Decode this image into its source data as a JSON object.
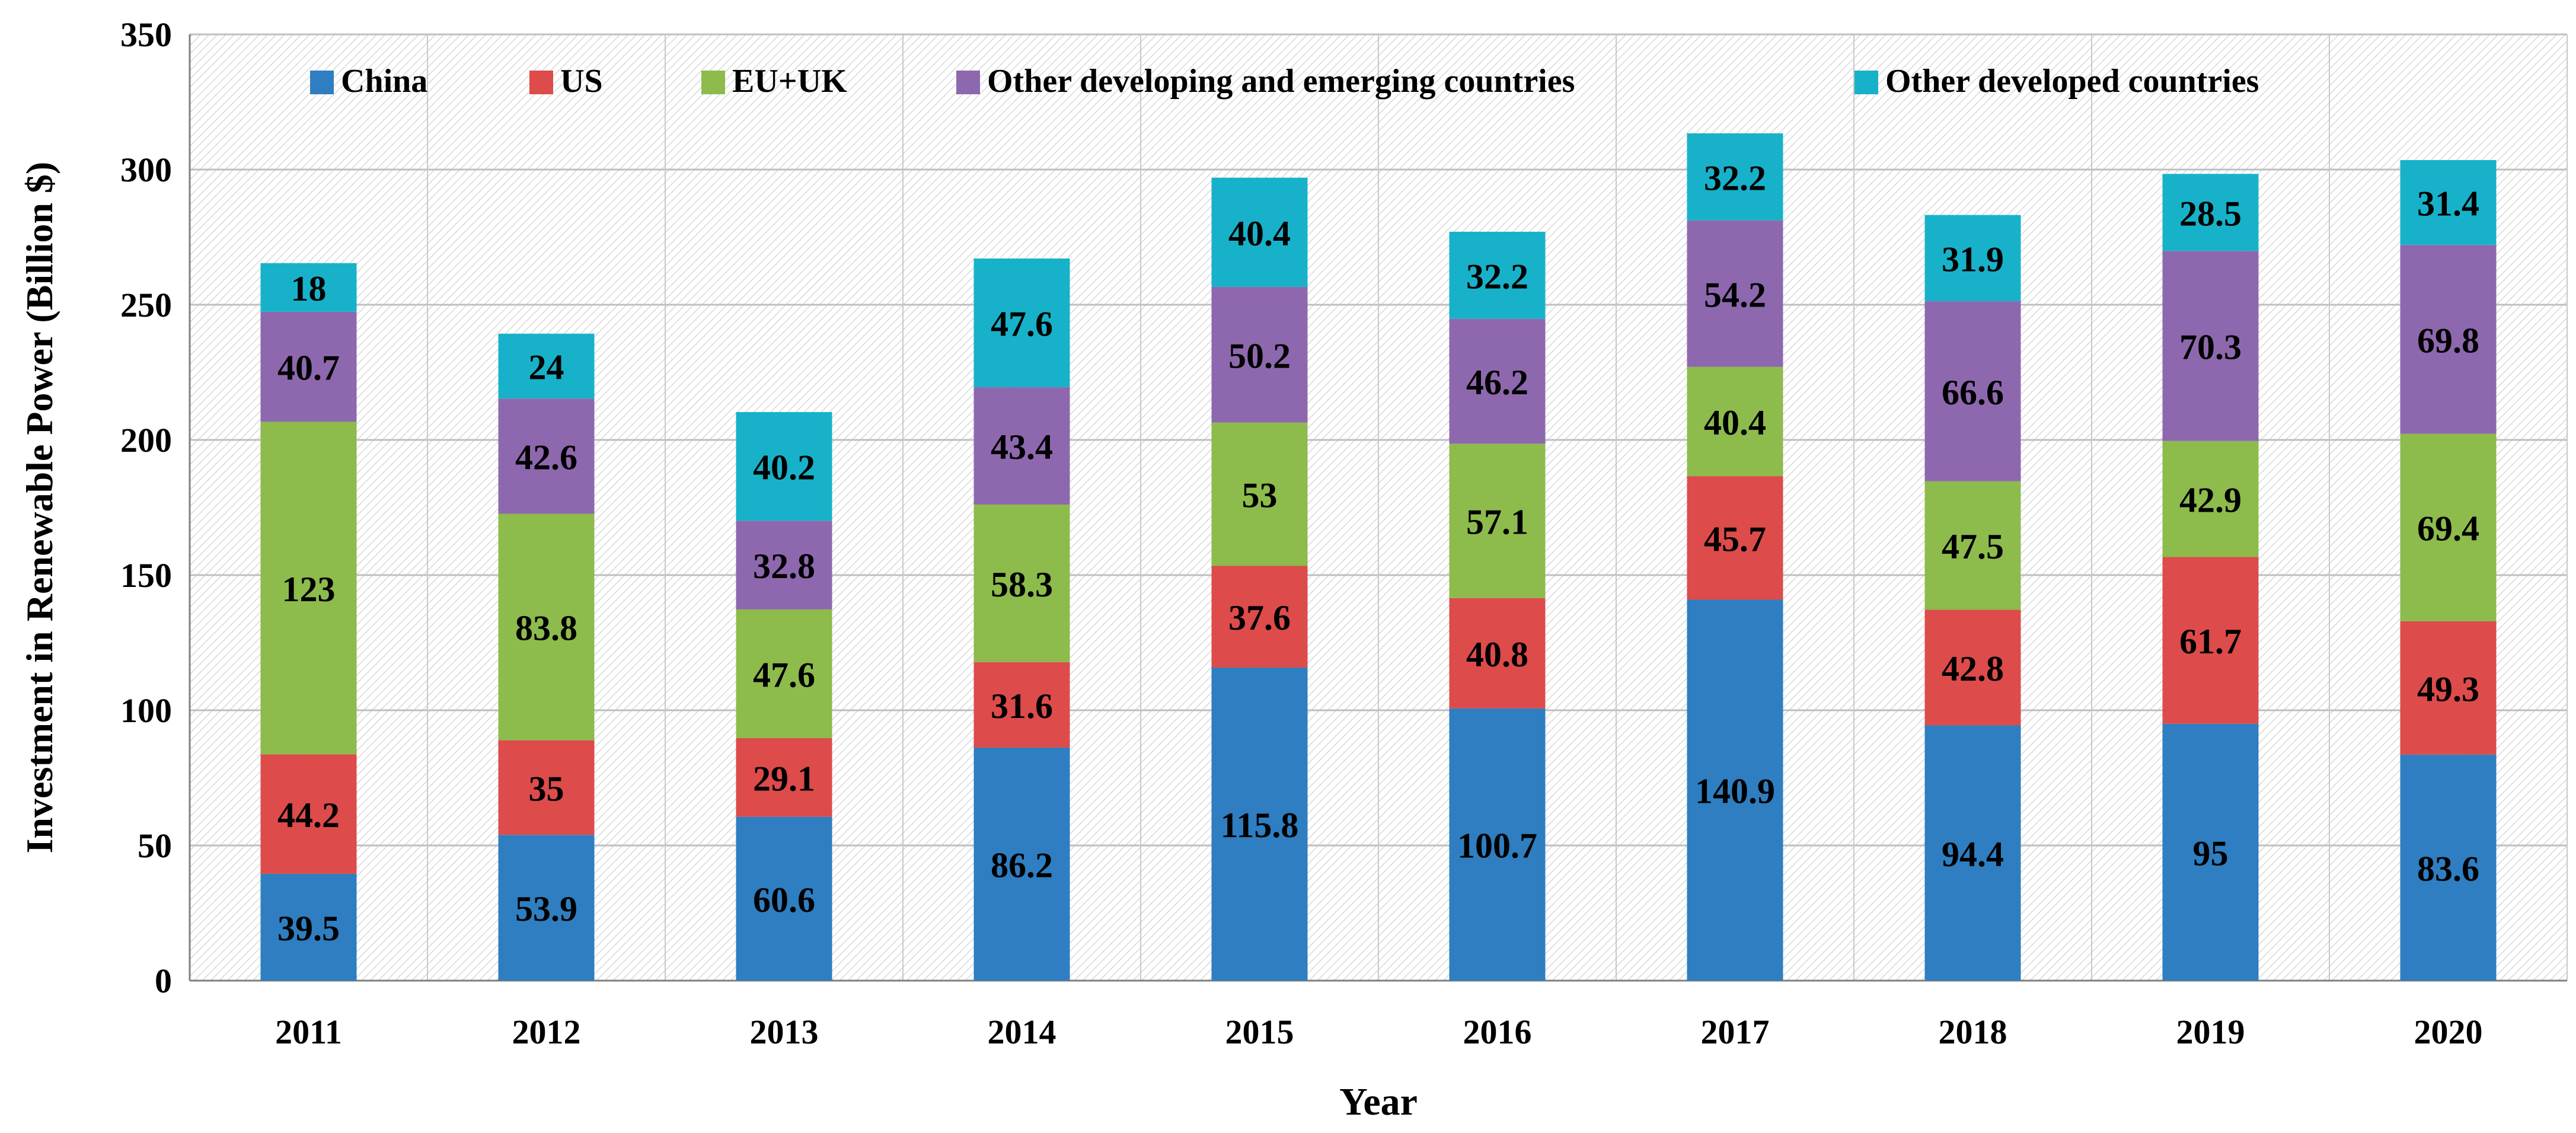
{
  "chart_data": {
    "type": "bar",
    "stacked": true,
    "title": "",
    "xlabel": "Year",
    "ylabel": "Investment in Renewable Power (Billion $)",
    "ylim": [
      0,
      350
    ],
    "yticks": [
      0,
      50,
      100,
      150,
      200,
      250,
      300,
      350
    ],
    "grid": true,
    "legend_position": "top",
    "categories": [
      "2011",
      "2012",
      "2013",
      "2014",
      "2015",
      "2016",
      "2017",
      "2018",
      "2019",
      "2020"
    ],
    "series": [
      {
        "name": "China",
        "color": "#2E7EC1",
        "values": [
          39.5,
          53.9,
          60.6,
          86.2,
          115.8,
          100.7,
          140.9,
          94.4,
          95,
          83.6
        ],
        "labels": [
          "39.5",
          "53.9",
          "60.6",
          "86.2",
          "115.8",
          "100.7",
          "140.9",
          "94.4",
          "95",
          "83.6"
        ]
      },
      {
        "name": "US",
        "color": "#DD4B4B",
        "values": [
          44.2,
          35,
          29.1,
          31.6,
          37.6,
          40.8,
          45.7,
          42.8,
          61.7,
          49.3
        ],
        "labels": [
          "44.2",
          "35",
          "29.1",
          "31.6",
          "37.6",
          "40.8",
          "45.7",
          "42.8",
          "61.7",
          "49.3"
        ]
      },
      {
        "name": "EU+UK",
        "color": "#8DBB4C",
        "values": [
          123,
          83.8,
          47.6,
          58.3,
          53,
          57.1,
          40.4,
          47.5,
          42.9,
          69.4
        ],
        "labels": [
          "123",
          "83.8",
          "47.6",
          "58.3",
          "53",
          "57.1",
          "40.4",
          "47.5",
          "42.9",
          "69.4"
        ]
      },
      {
        "name": "Other developing and emerging countries",
        "color": "#8E68AE",
        "values": [
          40.7,
          42.6,
          32.8,
          43.4,
          50.2,
          46.2,
          54.2,
          66.6,
          70.3,
          69.8
        ],
        "labels": [
          "40.7",
          "42.6",
          "32.8",
          "43.4",
          "50.2",
          "46.2",
          "54.2",
          "66.6",
          "70.3",
          "69.8"
        ]
      },
      {
        "name": "Other developed countries",
        "color": "#17B2C9",
        "values": [
          18,
          24,
          40.2,
          47.6,
          40.4,
          32.2,
          32.2,
          31.9,
          28.5,
          31.4
        ],
        "labels": [
          "18",
          "24",
          "40.2",
          "47.6",
          "40.4",
          "32.2",
          "32.2",
          "31.9",
          "28.5",
          "31.4"
        ]
      }
    ]
  }
}
